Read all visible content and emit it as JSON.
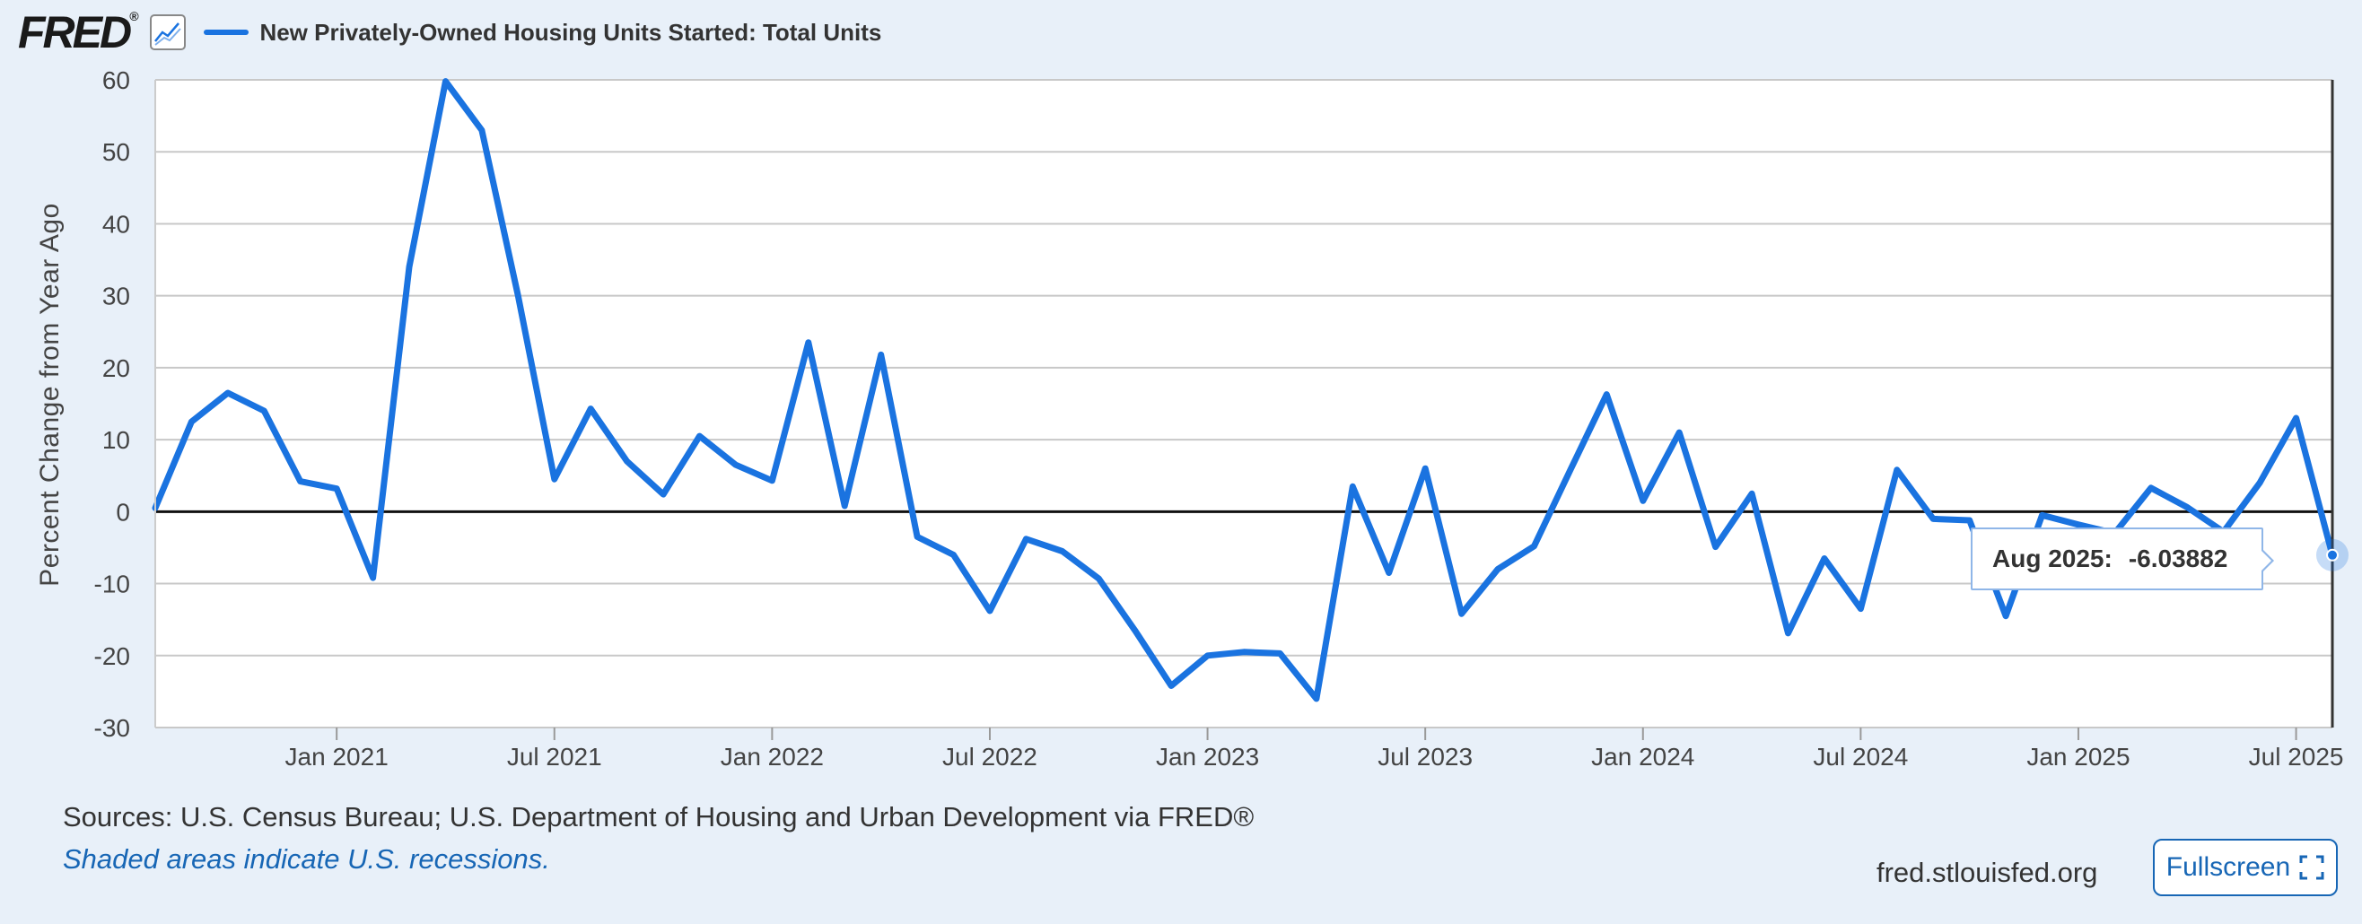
{
  "header": {
    "logo_text": "FRED",
    "logo_mark": "®",
    "legend_label": "New Privately-Owned Housing Units Started: Total Units",
    "line_color": "#1a73e0",
    "icon": "line-chart-icon"
  },
  "footer": {
    "sources": "Sources: U.S. Census Bureau; U.S. Department of Housing and Urban Development via FRED®",
    "shaded_note": "Shaded areas indicate U.S. recessions.",
    "site": "fred.stlouisfed.org",
    "fullscreen_label": "Fullscreen"
  },
  "tooltip": {
    "label": "Aug 2025:",
    "value": "-6.03882"
  },
  "chart_data": {
    "type": "line",
    "title": "New Privately-Owned Housing Units Started: Total Units",
    "xlabel": "",
    "ylabel": "Percent Change from Year Ago",
    "ylim": [
      -30,
      60
    ],
    "yticks": [
      60,
      50,
      40,
      30,
      20,
      10,
      0,
      -10,
      -20,
      -30
    ],
    "xticks": [
      {
        "label": "Jan 2021",
        "month_index": 5
      },
      {
        "label": "Jul 2021",
        "month_index": 11
      },
      {
        "label": "Jan 2022",
        "month_index": 17
      },
      {
        "label": "Jul 2022",
        "month_index": 23
      },
      {
        "label": "Jan 2023",
        "month_index": 29
      },
      {
        "label": "Jul 2023",
        "month_index": 35
      },
      {
        "label": "Jan 2024",
        "month_index": 41
      },
      {
        "label": "Jul 2024",
        "month_index": 47
      },
      {
        "label": "Jan 2025",
        "month_index": 53
      },
      {
        "label": "Jul 2025",
        "month_index": 59
      }
    ],
    "grid": true,
    "legend": "top-left",
    "series": [
      {
        "name": "New Privately-Owned Housing Units Started: Total Units",
        "start": "Aug 2020",
        "end": "Aug 2025",
        "frequency": "monthly",
        "values": [
          0.5,
          12.5,
          16.5,
          14.0,
          4.2,
          3.2,
          -9.2,
          34.0,
          59.8,
          53.0,
          30.0,
          4.5,
          14.3,
          7.0,
          2.4,
          10.5,
          6.5,
          4.3,
          23.5,
          0.8,
          21.8,
          -3.5,
          -6.0,
          -13.8,
          -3.8,
          -5.5,
          -9.3,
          -16.5,
          -24.2,
          -20.0,
          -19.5,
          -19.7,
          -26.0,
          3.5,
          -8.5,
          6.0,
          -14.2,
          -8.0,
          -4.8,
          5.8,
          16.3,
          1.5,
          11.0,
          -4.9,
          2.5,
          -16.9,
          -6.5,
          -13.5,
          5.8,
          -1.0,
          -1.2,
          -14.5,
          -0.5,
          -1.8,
          -3.0,
          3.3,
          0.6,
          -2.8,
          4.0,
          13.0,
          -6.03882
        ]
      }
    ]
  }
}
